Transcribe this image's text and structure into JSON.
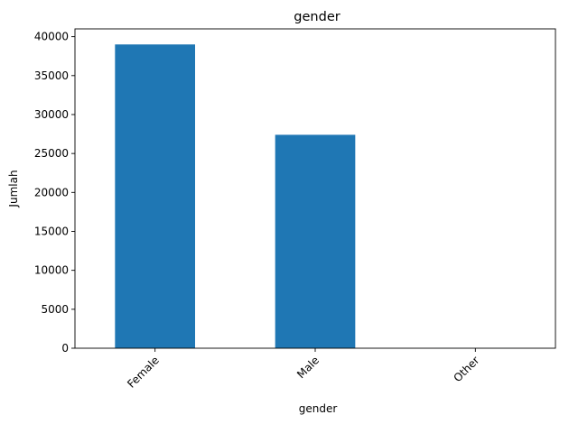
{
  "chart_data": {
    "type": "bar",
    "title": "gender",
    "xlabel": "gender",
    "ylabel": "Jumlah",
    "categories": [
      "Female",
      "Male",
      "Other"
    ],
    "values": [
      39000,
      27400,
      10
    ],
    "ylim": [
      0,
      41000
    ],
    "yticks": [
      0,
      5000,
      10000,
      15000,
      20000,
      25000,
      30000,
      35000,
      40000
    ],
    "bar_color": "#1f77b4",
    "grid": false,
    "legend": "none",
    "x_tick_rotation": 45
  }
}
